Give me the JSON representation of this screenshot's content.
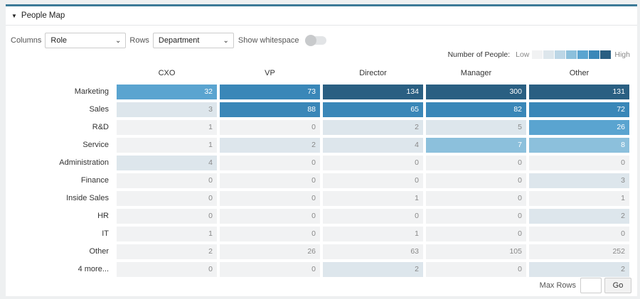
{
  "panel": {
    "title": "People Map"
  },
  "controls": {
    "columns_label": "Columns",
    "columns_value": "Role",
    "rows_label": "Rows",
    "rows_value": "Department",
    "whitespace_label": "Show whitespace",
    "whitespace_on": false
  },
  "legend": {
    "title": "Number of People:",
    "low": "Low",
    "high": "High",
    "colors": [
      "#f1f2f3",
      "#dde6ec",
      "#bcd6e6",
      "#8cc0dc",
      "#5aa4d0",
      "#3a87b8",
      "#2a5f82"
    ]
  },
  "heatmap": {
    "columns": [
      "CXO",
      "VP",
      "Director",
      "Manager",
      "Other"
    ],
    "rows": [
      {
        "label": "Marketing",
        "values": [
          32,
          73,
          134,
          300,
          131
        ]
      },
      {
        "label": "Sales",
        "values": [
          3,
          88,
          65,
          82,
          72
        ]
      },
      {
        "label": "R&D",
        "values": [
          1,
          0,
          2,
          5,
          26
        ]
      },
      {
        "label": "Service",
        "values": [
          1,
          2,
          4,
          7,
          8
        ]
      },
      {
        "label": "Administration",
        "values": [
          4,
          0,
          0,
          0,
          0
        ]
      },
      {
        "label": "Finance",
        "values": [
          0,
          0,
          0,
          0,
          3
        ]
      },
      {
        "label": "Inside Sales",
        "values": [
          0,
          0,
          1,
          0,
          1
        ]
      },
      {
        "label": "HR",
        "values": [
          0,
          0,
          0,
          0,
          2
        ]
      },
      {
        "label": "IT",
        "values": [
          1,
          0,
          1,
          0,
          0
        ]
      },
      {
        "label": "Other",
        "values": [
          2,
          26,
          63,
          105,
          252
        ]
      },
      {
        "label": "4 more...",
        "values": [
          0,
          0,
          2,
          0,
          2
        ]
      }
    ],
    "cell_levels": [
      [
        4,
        5,
        6,
        6,
        6
      ],
      [
        1,
        5,
        5,
        5,
        5
      ],
      [
        0,
        0,
        1,
        1,
        4
      ],
      [
        0,
        1,
        1,
        3,
        3
      ],
      [
        1,
        0,
        0,
        0,
        0
      ],
      [
        0,
        0,
        0,
        0,
        1
      ],
      [
        0,
        0,
        0,
        0,
        0
      ],
      [
        0,
        0,
        0,
        0,
        1
      ],
      [
        0,
        0,
        0,
        0,
        0
      ],
      [
        0,
        0,
        0,
        0,
        0
      ],
      [
        0,
        0,
        1,
        0,
        1
      ]
    ]
  },
  "footer": {
    "max_rows_label": "Max Rows",
    "max_rows_value": "",
    "go_label": "Go"
  }
}
